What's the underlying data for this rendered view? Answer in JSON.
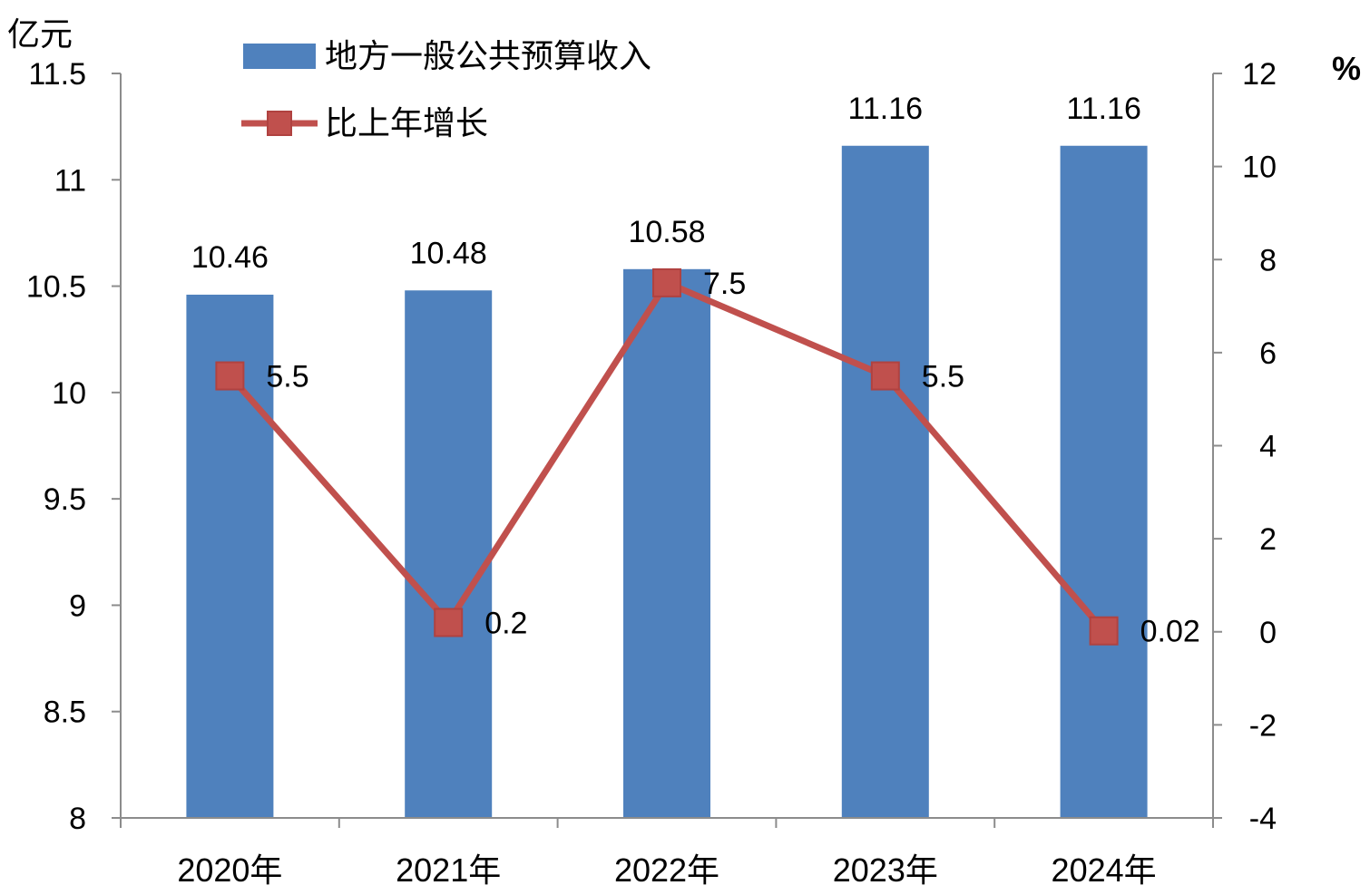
{
  "chart_data": {
    "type": "bar",
    "categories": [
      "2020年",
      "2021年",
      "2022年",
      "2023年",
      "2024年"
    ],
    "series": [
      {
        "name": "地方一般公共预算收入",
        "type": "bar",
        "axis": "left",
        "values": [
          10.46,
          10.48,
          10.58,
          11.16,
          11.16
        ],
        "labels": [
          "10.46",
          "10.48",
          "10.58",
          "11.16",
          "11.16"
        ],
        "color": "#4f81bd"
      },
      {
        "name": "比上年增长",
        "type": "line",
        "axis": "right",
        "values": [
          5.5,
          0.2,
          7.5,
          5.5,
          0.02
        ],
        "labels": [
          "5.5",
          "0.2",
          "7.5",
          "5.5",
          "0.02"
        ],
        "color": "#c0504d"
      }
    ],
    "y_left": {
      "unit": "亿元",
      "ylim": [
        8,
        11.5
      ],
      "ticks": [
        "8",
        "8.5",
        "9",
        "9.5",
        "10",
        "10.5",
        "11",
        "11.5"
      ]
    },
    "y_right": {
      "unit": "%",
      "ylim": [
        -4,
        12
      ],
      "ticks": [
        "-4",
        "-2",
        "0",
        "2",
        "4",
        "6",
        "8",
        "10",
        "12"
      ]
    },
    "legend": "top-left",
    "grid": false
  }
}
